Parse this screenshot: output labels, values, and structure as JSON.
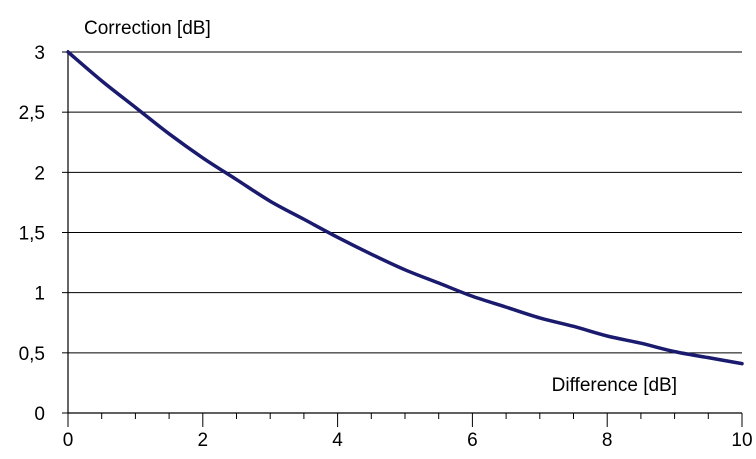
{
  "chart_data": {
    "type": "line",
    "xlabel": "Difference [dB]",
    "ylabel": "Correction [dB]",
    "xlim": [
      0,
      10
    ],
    "ylim": [
      0,
      3
    ],
    "x_ticks": [
      "0",
      "2",
      "4",
      "6",
      "8",
      "10"
    ],
    "y_ticks": [
      "0",
      "0,5",
      "1",
      "1,5",
      "2",
      "2,5",
      "3"
    ],
    "x_minor_step": 0.5,
    "grid": "horizontal",
    "legend": "none",
    "series": [
      {
        "color": "#1a1a6e",
        "x": [
          0,
          0.5,
          1,
          1.5,
          2,
          2.5,
          3,
          3.5,
          4,
          4.5,
          5,
          5.5,
          6,
          6.5,
          7,
          7.5,
          8,
          8.5,
          9,
          9.5,
          10
        ],
        "y": [
          3.0,
          2.76,
          2.54,
          2.32,
          2.12,
          1.94,
          1.76,
          1.61,
          1.46,
          1.32,
          1.19,
          1.08,
          0.97,
          0.88,
          0.79,
          0.72,
          0.64,
          0.58,
          0.51,
          0.46,
          0.41
        ]
      }
    ]
  }
}
